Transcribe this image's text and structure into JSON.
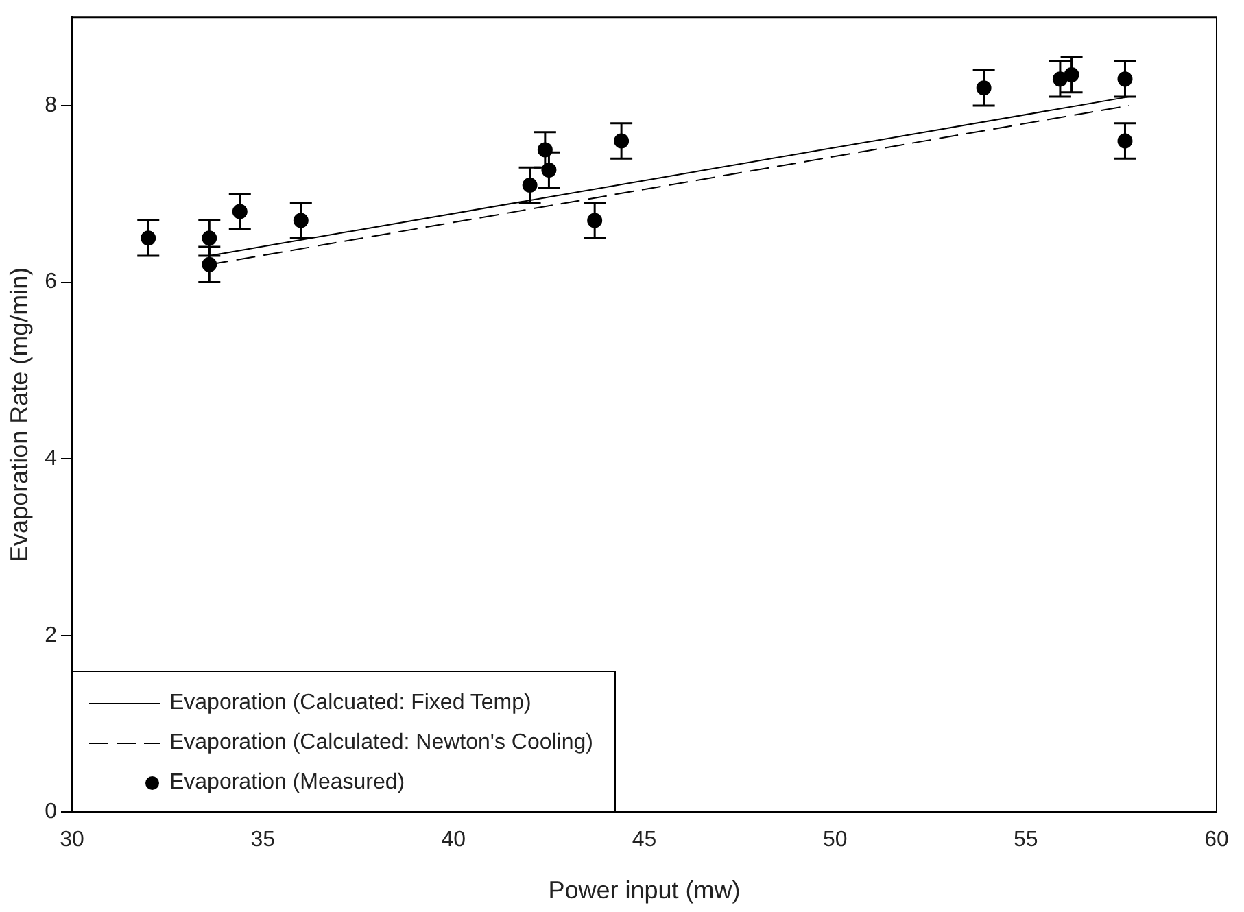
{
  "chart_data": {
    "type": "scatter",
    "xlabel": "Power input (mw)",
    "ylabel": "Evaporation Rate (mg/min)",
    "xlim": [
      30,
      60
    ],
    "xticks": [
      30,
      35,
      40,
      45,
      50,
      55,
      60
    ],
    "ylim": [
      0,
      9
    ],
    "yticks": [
      0,
      2,
      4,
      6,
      8
    ],
    "grid": false,
    "legend": "bottom left",
    "series": [
      {
        "name": "Evaporation (Calcuated: Fixed Temp)",
        "type": "line",
        "line_style": "solid",
        "marker": "none",
        "color": "#000000",
        "x": [
          33.6,
          57.7
        ],
        "values": [
          6.3,
          8.1
        ]
      },
      {
        "name": "Evaporation (Calculated: Newton's Cooling)",
        "type": "line",
        "line_style": "dashed",
        "marker": "none",
        "color": "#000000",
        "x": [
          33.6,
          57.7
        ],
        "values": [
          6.2,
          8.0
        ]
      },
      {
        "name": "Evaporation (Measured)",
        "marker": "circle",
        "color": "#000000",
        "x": [
          32,
          33.6,
          33.6,
          34.4,
          36,
          42,
          42.4,
          42.5,
          43.7,
          44.4,
          53.9,
          55.9,
          56.2,
          57.6,
          57.6
        ],
        "values": [
          6.5,
          6.5,
          6.2,
          6.8,
          6.7,
          7.1,
          7.5,
          7.27,
          6.7,
          7.6,
          8.2,
          8.3,
          8.35,
          8.3,
          7.6
        ],
        "errors": [
          0.2,
          0.2,
          0.2,
          0.2,
          0.2,
          0.2,
          0.2,
          0.2,
          0.2,
          0.2,
          0.2,
          0.2,
          0.2,
          0.2,
          0.2
        ]
      }
    ]
  }
}
